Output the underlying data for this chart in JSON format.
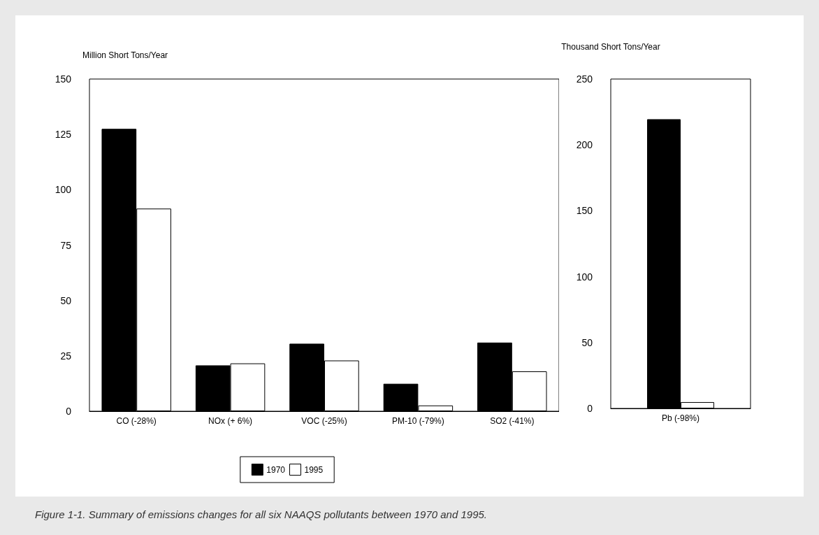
{
  "chart_data": [
    {
      "type": "bar",
      "ylabel": "Million Short Tons/Year",
      "categories": [
        "CO (-28%)",
        "NOx (+ 6%)",
        "VOC (-25%)",
        "PM-10 (-79%)",
        "SO2 (-41%)"
      ],
      "series": [
        {
          "name": "1970",
          "color": "#000000",
          "values": [
            127.5,
            20.7,
            30.5,
            12.4,
            31.0
          ]
        },
        {
          "name": "1995",
          "color": "#ffffff",
          "values": [
            91.5,
            21.6,
            22.9,
            2.6,
            18.0
          ]
        }
      ],
      "ylim": [
        0,
        150
      ],
      "yticks": [
        0,
        25,
        50,
        75,
        100,
        125,
        150
      ],
      "legend": "bottom",
      "annotations": [
        "Figure 1-1. Summary of emissions changes for all six NAAQS pollutants between 1970 and 1995."
      ]
    },
    {
      "type": "bar",
      "ylabel": "Thousand Short Tons/Year",
      "categories": [
        "Pb (-98%)"
      ],
      "series": [
        {
          "color": "#000000",
          "values": [
            219.5
          ]
        },
        {
          "color": "#ffffff",
          "values": [
            4.8
          ]
        }
      ],
      "ylim": [
        0,
        250
      ],
      "yticks": [
        0,
        50,
        100,
        150,
        200,
        250
      ]
    }
  ]
}
